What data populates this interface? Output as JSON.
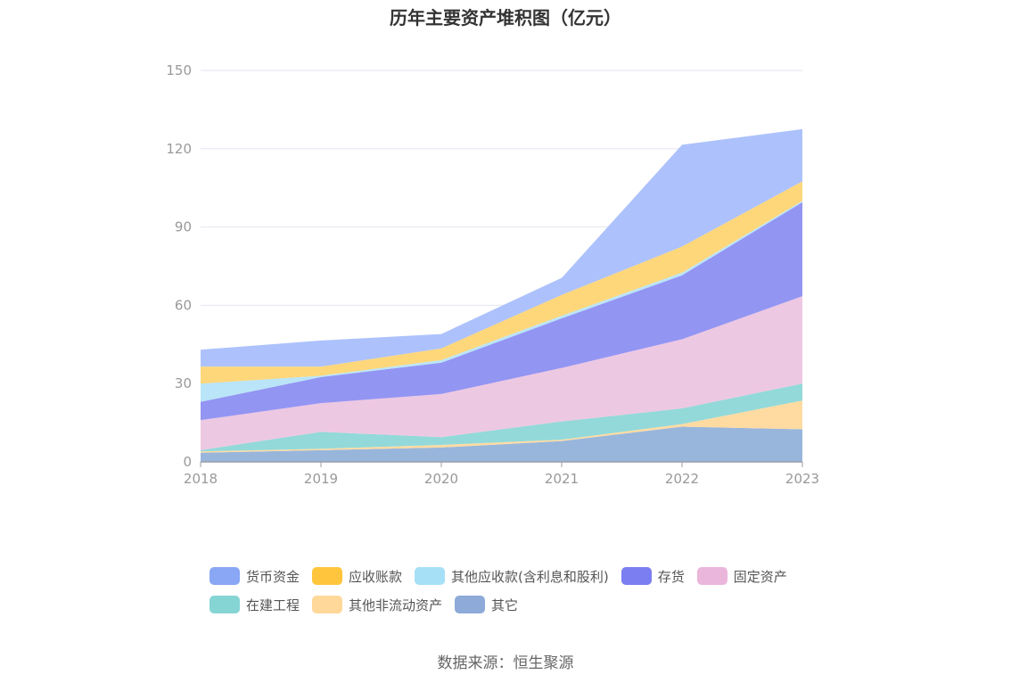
{
  "chart_data": {
    "type": "area",
    "stacked": true,
    "title": "历年主要资产堆积图（亿元）",
    "x": [
      "2018",
      "2019",
      "2020",
      "2021",
      "2022",
      "2023"
    ],
    "ylim": [
      0,
      150
    ],
    "yticks": [
      0,
      30,
      60,
      90,
      120,
      150
    ],
    "grid": true,
    "legend_position": "bottom",
    "series": [
      {
        "name": "其它",
        "color": "#8fb0d9",
        "values": [
          3.5,
          4.5,
          5.5,
          8.0,
          13.5,
          12.5
        ]
      },
      {
        "name": "其他非流动资产",
        "color": "#ffd89a",
        "values": [
          0.5,
          0.5,
          1.0,
          0.5,
          1.0,
          11.0
        ]
      },
      {
        "name": "在建工程",
        "color": "#8ad6d6",
        "values": [
          0.5,
          6.5,
          3.0,
          7.0,
          6.0,
          6.5
        ]
      },
      {
        "name": "固定资产",
        "color": "#ebc3df",
        "values": [
          11.5,
          11.0,
          16.5,
          20.5,
          26.5,
          33.5
        ]
      },
      {
        "name": "存货",
        "color": "#8a8cf2",
        "values": [
          7.0,
          10.0,
          12.0,
          19.0,
          24.5,
          36.0
        ]
      },
      {
        "name": "其他应收款(含利息和股利)",
        "color": "#b4e3f7",
        "values": [
          7.0,
          0.5,
          1.0,
          1.0,
          1.0,
          0.5
        ]
      },
      {
        "name": "应收账款",
        "color": "#ffd470",
        "values": [
          6.5,
          3.5,
          4.5,
          8.0,
          10.0,
          7.5
        ]
      },
      {
        "name": "货币资金",
        "color": "#a6bdfc",
        "values": [
          6.5,
          10.0,
          5.5,
          6.5,
          39.0,
          20.0
        ]
      }
    ]
  },
  "legend": {
    "row1": [
      {
        "label": "货币资金",
        "color": "#8aa7f5"
      },
      {
        "label": "应收账款",
        "color": "#ffc53d"
      },
      {
        "label": "其他应收款(含利息和股利)",
        "color": "#a6e0f7"
      },
      {
        "label": "存货",
        "color": "#7b7ef0"
      },
      {
        "label": "固定资产",
        "color": "#ebb6db"
      }
    ],
    "row2": [
      {
        "label": "在建工程",
        "color": "#86d5d5"
      },
      {
        "label": "其他非流动资产",
        "color": "#ffd89a"
      },
      {
        "label": "其它",
        "color": "#8daad9"
      }
    ]
  },
  "source": "数据来源：恒生聚源"
}
